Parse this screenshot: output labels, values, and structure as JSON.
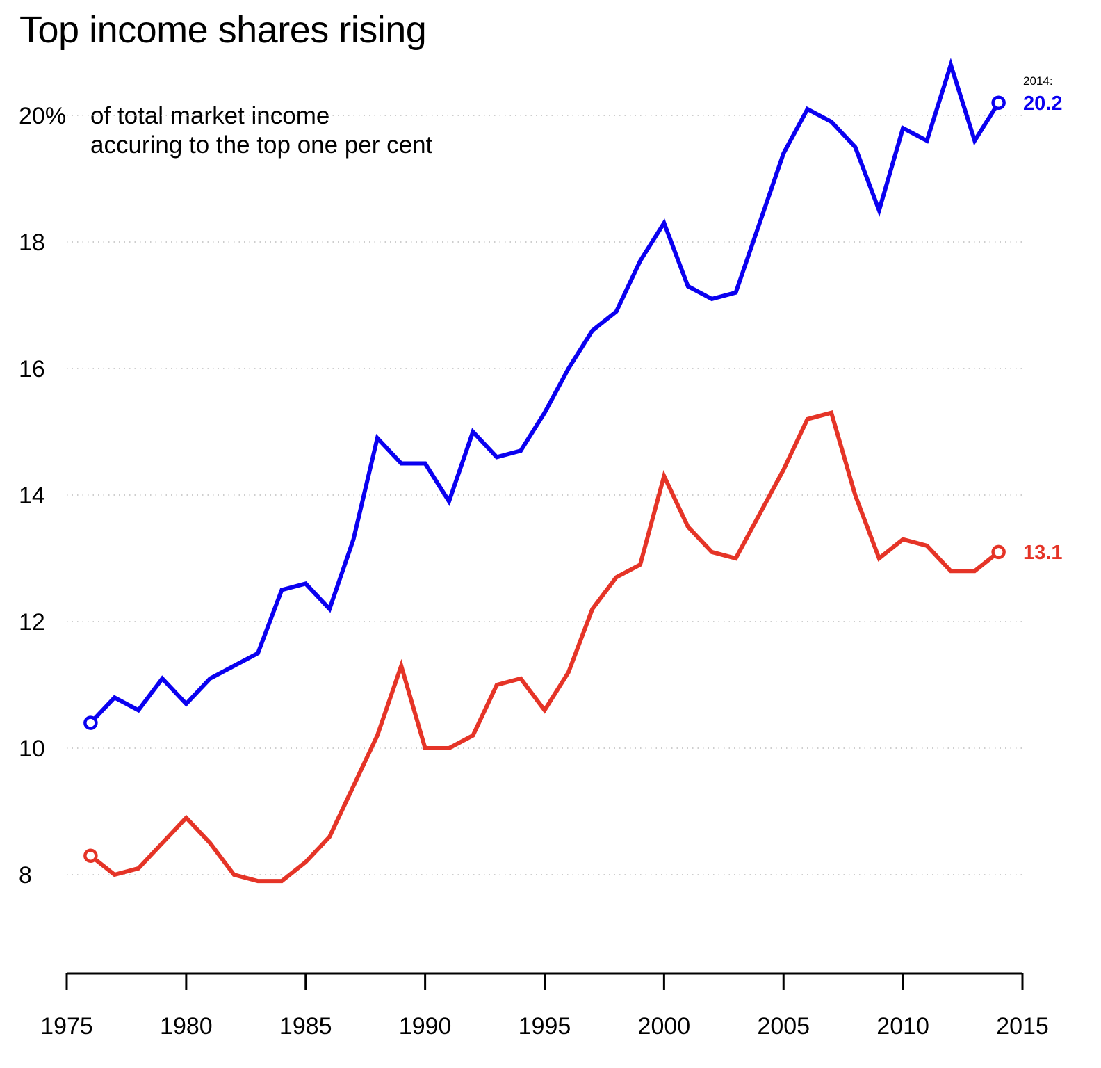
{
  "chart_data": {
    "type": "line",
    "title": "Top income shares rising",
    "subtitle_lines": [
      "of total market income",
      "accuring to the top one per cent"
    ],
    "xlabel": "",
    "ylabel": "",
    "ylim": [
      6.5,
      21
    ],
    "xlim": [
      1975,
      2015
    ],
    "y_ticks": [
      8,
      10,
      12,
      14,
      16,
      18,
      20
    ],
    "y_tick_labels": [
      "8",
      "10",
      "12",
      "14",
      "16",
      "18",
      "20%"
    ],
    "x_ticks": [
      1975,
      1980,
      1985,
      1990,
      1995,
      2000,
      2005,
      2010,
      2015
    ],
    "x_tick_labels": [
      "1975",
      "1980",
      "1985",
      "1990",
      "1995",
      "2000",
      "2005",
      "2010",
      "2015"
    ],
    "grid": "horizontal dotted",
    "x": [
      1976,
      1977,
      1978,
      1979,
      1980,
      1981,
      1982,
      1983,
      1984,
      1985,
      1986,
      1987,
      1988,
      1989,
      1990,
      1991,
      1992,
      1993,
      1994,
      1995,
      1996,
      1997,
      1998,
      1999,
      2000,
      2001,
      2002,
      2003,
      2004,
      2005,
      2006,
      2007,
      2008,
      2009,
      2010,
      2011,
      2012,
      2013,
      2014
    ],
    "series": [
      {
        "name": "blue-series",
        "color": "#0a00f0",
        "values": [
          10.4,
          10.8,
          10.6,
          11.1,
          10.7,
          11.1,
          11.3,
          11.5,
          12.5,
          12.6,
          12.2,
          13.3,
          14.9,
          14.5,
          14.5,
          13.9,
          15.0,
          14.6,
          14.7,
          15.3,
          16.0,
          16.6,
          16.9,
          17.7,
          18.3,
          17.3,
          17.1,
          17.2,
          18.3,
          19.4,
          20.1,
          19.9,
          19.5,
          18.5,
          19.8,
          19.6,
          20.8,
          19.6,
          20.2
        ],
        "end_label": "20.2"
      },
      {
        "name": "red-series",
        "color": "#e53427",
        "values": [
          8.3,
          8.0,
          8.1,
          8.5,
          8.9,
          8.5,
          8.0,
          7.9,
          7.9,
          8.2,
          8.6,
          9.4,
          10.2,
          11.3,
          10.0,
          10.0,
          10.2,
          11.0,
          11.1,
          10.6,
          11.2,
          12.2,
          12.7,
          12.9,
          14.3,
          13.5,
          13.1,
          13.0,
          13.7,
          14.4,
          15.2,
          15.3,
          14.0,
          13.0,
          13.3,
          13.2,
          12.8,
          12.8,
          13.1
        ],
        "end_label": "13.1"
      }
    ],
    "annotations": {
      "end_year_label": "2014:"
    }
  }
}
